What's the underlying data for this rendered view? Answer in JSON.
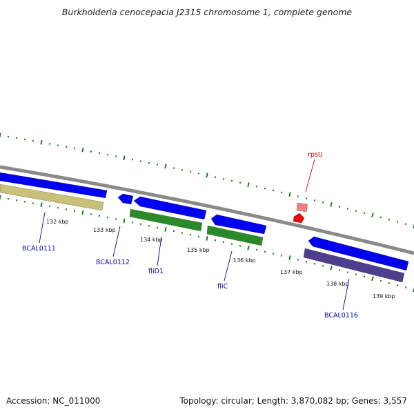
{
  "title": "Burkholderia cenocepacia J2315 chromosome 1, complete genome",
  "footer": {
    "accession": "Accession: NC_011000",
    "summary": "Topology: circular; Length: 3,870,082 bp; Genes: 3,557"
  },
  "colors": {
    "backbone": "#8a8a8a",
    "tick": "#1f7a1f",
    "cds": "#0000ee",
    "rrna_like": "#2a8a2a",
    "tan": "#c9c07a",
    "purple": "#4e3f8e",
    "trna": "#ee0000",
    "trna_faint": "#f08080",
    "label_cds": "#0000aa",
    "label_rna": "#cc0000"
  },
  "scale_labels": [
    "132 kbp",
    "133 kbp",
    "134 kbp",
    "135 kbp",
    "136 kbp",
    "137 kbp",
    "138 kbp",
    "139 kbp"
  ],
  "gene_labels": [
    {
      "text": "BCAL0111",
      "color": "label_cds"
    },
    {
      "text": "BCAL0112",
      "color": "label_cds"
    },
    {
      "text": "fliD1",
      "color": "label_cds"
    },
    {
      "text": "fliC",
      "color": "label_cds"
    },
    {
      "text": "BCAL0116",
      "color": "label_cds"
    },
    {
      "text": "rpsU",
      "color": "label_rna"
    }
  ]
}
